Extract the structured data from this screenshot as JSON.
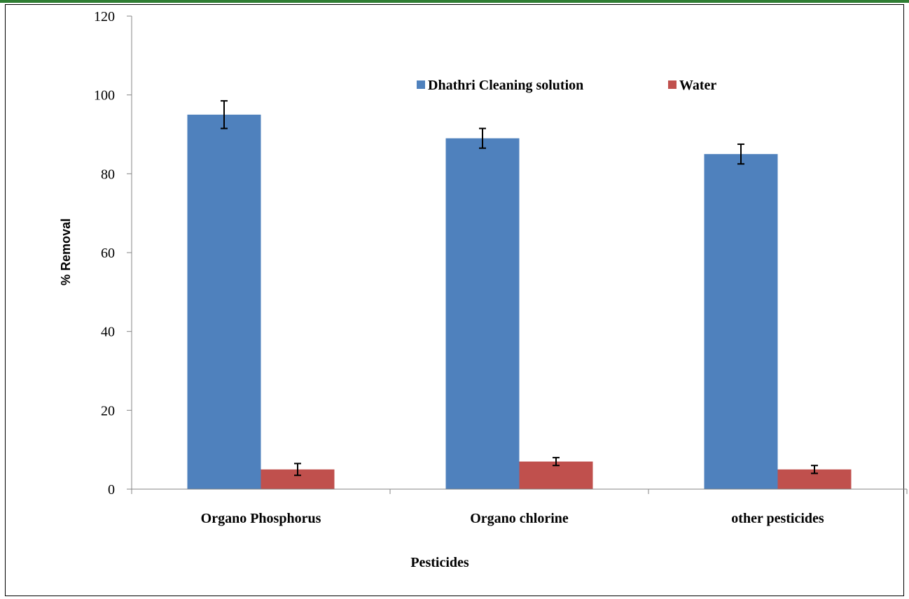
{
  "chart_data": {
    "type": "bar",
    "categories": [
      "Organo Phosphorus",
      "Organo chlorine",
      "other pesticides"
    ],
    "series": [
      {
        "name": "Dhathri Cleaning solution",
        "color": "#4f81bd",
        "values": [
          95,
          89,
          85
        ],
        "errors": [
          3.5,
          2.5,
          2.5
        ]
      },
      {
        "name": "Water",
        "color": "#c0504d",
        "values": [
          5,
          7,
          5
        ],
        "errors": [
          1.5,
          1,
          1
        ]
      }
    ],
    "title": "",
    "xlabel": "Pesticides",
    "ylabel": "% Removal",
    "ylim": [
      0,
      120
    ],
    "yticks": [
      0,
      20,
      40,
      60,
      80,
      100,
      120
    ],
    "grid": false,
    "legend_position": "top-right"
  }
}
